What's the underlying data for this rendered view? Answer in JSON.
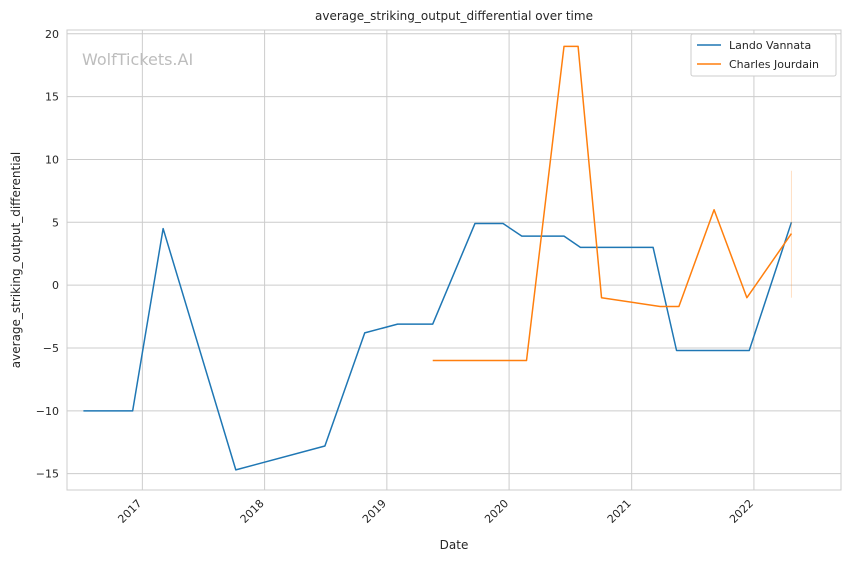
{
  "chart_data": {
    "type": "line",
    "title": "average_striking_output_differential over time",
    "xlabel": "Date",
    "ylabel": "average_striking_output_differential",
    "watermark": "WolfTickets.AI",
    "grid": true,
    "legend_position": "top-right",
    "x_ticks": [
      "2017",
      "2018",
      "2019",
      "2020",
      "2021",
      "2022"
    ],
    "y_ticks": [
      20,
      15,
      10,
      5,
      0,
      -5,
      -10,
      -15
    ],
    "ylim": [
      -16.3,
      20.3
    ],
    "xlim": [
      "2016-05-21",
      "2022-09-18"
    ],
    "series": [
      {
        "name": "Lando Vannata",
        "color": "#1f77b4",
        "points": [
          [
            "2016-07-09",
            -10.0
          ],
          [
            "2016-12-03",
            -10.0
          ],
          [
            "2017-03-04",
            4.5
          ],
          [
            "2017-10-07",
            -14.7
          ],
          [
            "2018-06-30",
            -12.8
          ],
          [
            "2018-10-27",
            -3.8
          ],
          [
            "2019-02-02",
            -3.1
          ],
          [
            "2019-05-18",
            -3.1
          ],
          [
            "2019-09-21",
            4.9
          ],
          [
            "2019-12-14",
            4.9
          ],
          [
            "2020-02-08",
            3.9
          ],
          [
            "2020-06-13",
            3.9
          ],
          [
            "2020-08-01",
            3.0
          ],
          [
            "2021-03-06",
            3.0
          ],
          [
            "2021-05-15",
            -5.2
          ],
          [
            "2021-12-18",
            -5.2
          ],
          [
            "2022-04-23",
            5.0
          ]
        ]
      },
      {
        "name": "Charles Jourdain",
        "color": "#ff7f0e",
        "points": [
          [
            "2019-05-18",
            -6.0
          ],
          [
            "2020-02-22",
            -6.0
          ],
          [
            "2020-06-13",
            19.0
          ],
          [
            "2020-07-25",
            19.0
          ],
          [
            "2020-10-03",
            -1.0
          ],
          [
            "2021-03-27",
            -1.7
          ],
          [
            "2021-05-22",
            -1.7
          ],
          [
            "2021-09-04",
            6.0
          ],
          [
            "2021-12-11",
            -1.0
          ],
          [
            "2022-04-23",
            4.1
          ]
        ],
        "error_bar": {
          "x": "2022-04-23",
          "low": -1.0,
          "high": 9.1
        }
      }
    ]
  }
}
